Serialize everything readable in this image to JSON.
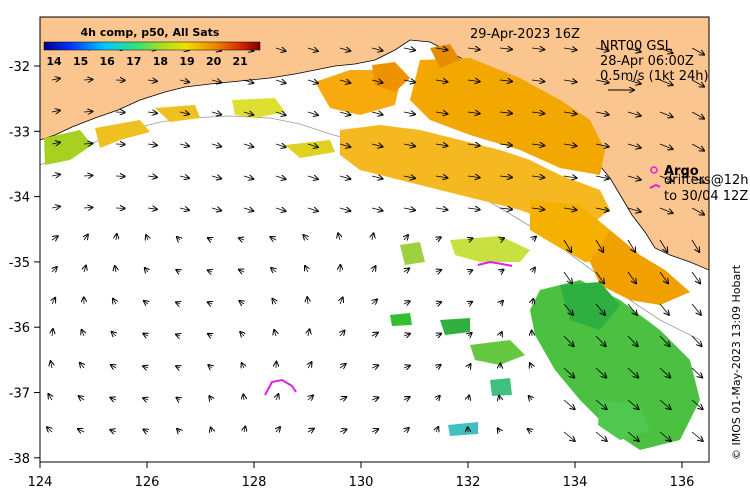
{
  "map": {
    "date_title": "29-Apr-2023 16Z",
    "colorbar": {
      "title": "4h comp, p50, All Sats",
      "ticks": [
        "14",
        "15",
        "16",
        "17",
        "18",
        "19",
        "20",
        "21"
      ]
    },
    "currents_info": {
      "line1": "NRT00 GSL",
      "line2": "28-Apr 06:00Z",
      "line3": "0.5m/s (1kt 24h)"
    },
    "argo_label": "Argo",
    "drifters_line1": "drifters@12h",
    "drifters_line2": "to 30/04 12Z",
    "credit": "© IMOS 01-May-2023 13:09 Hobart",
    "lon_ticks": [
      "124",
      "126",
      "128",
      "130",
      "132",
      "134",
      "136"
    ],
    "lat_ticks": [
      "-32",
      "-33",
      "-34",
      "-35",
      "-36",
      "-37",
      "-38"
    ],
    "colors": {
      "land": "#fbc58f",
      "argo": "#e020e0",
      "drifter": "#e020e0"
    }
  }
}
